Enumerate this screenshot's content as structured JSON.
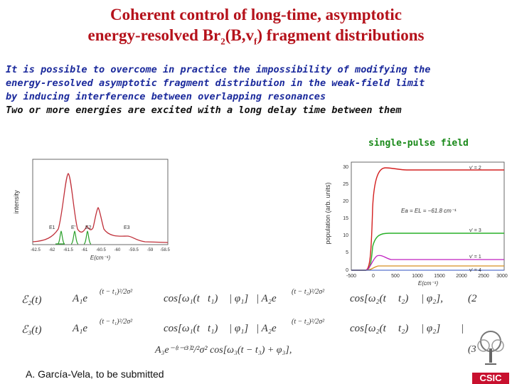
{
  "title": {
    "line1": "Coherent control of long-time, asymptotic",
    "line2_prefix": "energy-resolved Br",
    "line2_sub1": "2",
    "line2_mid": "(B,v",
    "line2_sub2": "f",
    "line2_suffix": ") fragment distributions"
  },
  "body": {
    "lines": [
      "It is possible to overcome in practice the  impossibility of modifying the",
      "energy-resolved asymptotic fragment distribution in the weak-field limit",
      "by inducing interference between overlapping resonances",
      "Two or more energies are excited with a long delay time between them"
    ]
  },
  "caption": "single-pulse field",
  "left_plot": {
    "ylabel": "intensity",
    "xlabel": "E(cm⁻¹)",
    "xticks": [
      "-62.5",
      "-62",
      "-61.5",
      "-61",
      "-60.5",
      "-60",
      "-59.5",
      "-59",
      "-58.5"
    ],
    "peak_labels": [
      "E1",
      "E'",
      "E2",
      "E3"
    ],
    "colors": {
      "spectrum": "#c0303a",
      "pulses": "#2aa02a"
    }
  },
  "right_plot": {
    "ylabel": "population (arb. units)",
    "xlabel": "E(cm⁻¹)",
    "xticks": [
      "-500",
      "0",
      "500",
      "1000",
      "1500",
      "2000",
      "2500",
      "3000"
    ],
    "yticks": [
      "0",
      "5",
      "10",
      "15",
      "20",
      "25",
      "30"
    ],
    "annotation": "Ea = EL = −61.8 cm⁻¹",
    "curve_labels": [
      "v' = 2",
      "v' = 3",
      "v' = 1",
      "v' = 4"
    ],
    "colors": {
      "v2": "#d42020",
      "v3": "#28b028",
      "v1": "#c020c0",
      "v4": "#d89020"
    }
  },
  "equations": {
    "eq1": [
      "ℰ₂(t)",
      "A₁e",
      "(t − t₁)²/2σ²",
      "cos[ω₁(t",
      "t₁)",
      "| φ₁]",
      "| A₂e",
      "(t − t₂)²/2σ²",
      "cos[ω₂(t",
      "t₂)",
      "| φ₂],",
      "(2"
    ],
    "eq2": [
      "ℰ₃(t)",
      "A₁e",
      "(t − t₁)²/2σ²",
      "cos[ω₁(t",
      "t₁)",
      "| φ₁]",
      "| A₂e",
      "(t − t₂)²/2σ²",
      "cos[ω₂(t",
      "t₂)",
      "| φ₂]",
      "|"
    ],
    "eq3": "A₃e⁻⁽ᵗ⁻ᵗ³⁾²/²σ² cos[ω₃(t − t₃) + φ₃],",
    "eq3_num": "(3"
  },
  "author": "A. García-Vela, to be submitted",
  "logo": {
    "text": "CSIC",
    "color": "#c8102e"
  }
}
